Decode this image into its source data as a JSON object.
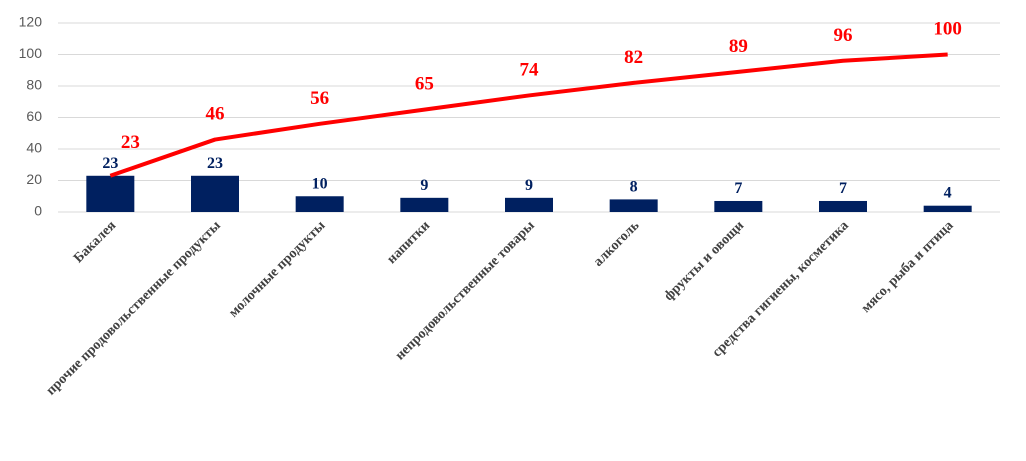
{
  "chart_data": {
    "type": "bar",
    "categories": [
      "Бакалея",
      "прочие продовольственные продукты",
      "молочные продукты",
      "напитки",
      "непродовольственные товары",
      "алкоголь",
      "фрукты и овощи",
      "средства гигиены, косметика",
      "мясо, рыба и птица"
    ],
    "series": [
      {
        "type": "bar",
        "color": "#002060",
        "values": [
          23,
          23,
          10,
          9,
          9,
          8,
          7,
          7,
          4
        ]
      },
      {
        "type": "line",
        "color": "#ff0000",
        "values": [
          23,
          46,
          56,
          65,
          74,
          82,
          89,
          96,
          100
        ]
      }
    ],
    "ylim": [
      0,
      120
    ],
    "yticks": [
      0,
      20,
      40,
      60,
      80,
      100,
      120
    ],
    "grid": true
  }
}
